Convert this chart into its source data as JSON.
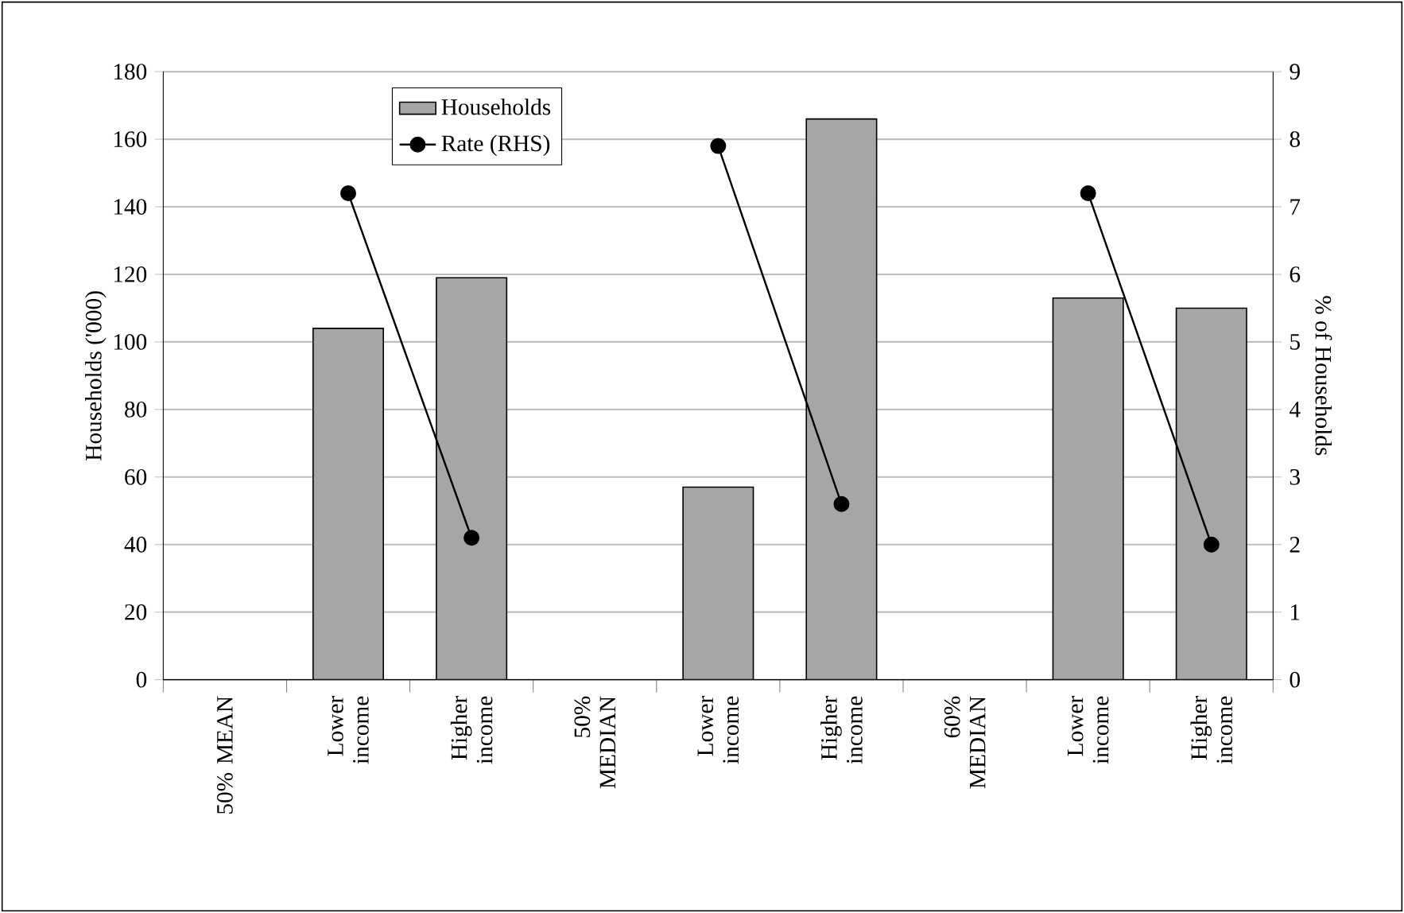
{
  "chart_data": {
    "type": "bar",
    "categories": [
      "50% MEAN",
      "Lower income",
      "Higher income",
      "50% MEDIAN",
      "Lower income",
      "Higher income",
      "60% MEDIAN",
      "Lower income",
      "Higher income"
    ],
    "ylabel": "Households ('000)",
    "y2label": "% of Households",
    "ylim": [
      0,
      180
    ],
    "yticks": [
      0,
      20,
      40,
      60,
      80,
      100,
      120,
      140,
      160,
      180
    ],
    "y2lim": [
      0,
      9
    ],
    "y2ticks": [
      0,
      1,
      2,
      3,
      4,
      5,
      6,
      7,
      8,
      9
    ],
    "grid": "y",
    "legend": "top",
    "marker": "circle",
    "series": [
      {
        "name": "Households",
        "color": "#a6a6a6",
        "values": [
          null,
          104,
          119,
          null,
          57,
          166,
          null,
          113,
          110
        ]
      },
      {
        "name": "Rate (RHS)",
        "type": "line",
        "axis": "y2",
        "color": "#000000",
        "values": [
          null,
          7.2,
          2.1,
          null,
          7.9,
          2.6,
          null,
          7.2,
          2.0
        ]
      }
    ]
  }
}
